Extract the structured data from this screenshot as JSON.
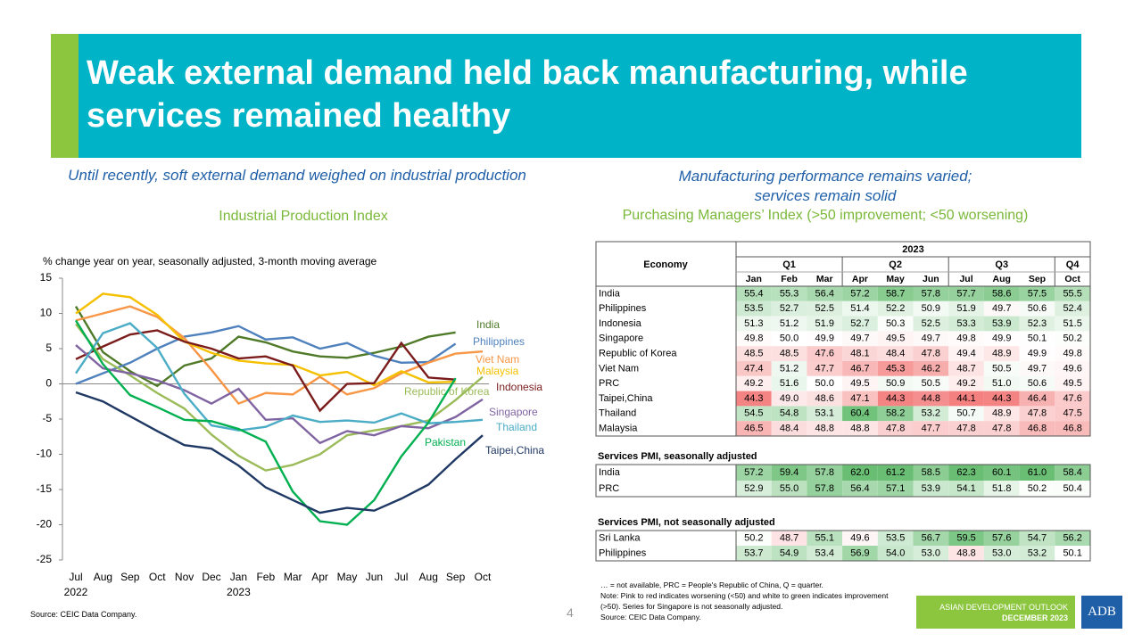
{
  "header": {
    "title": "Weak external demand held back manufacturing, while services remained healthy"
  },
  "left": {
    "heading": "Until recently, soft external demand weighed on industrial production",
    "source": "Source: CEIC Data Company."
  },
  "chart_data": {
    "type": "line",
    "title": "Industrial Production Index",
    "y_label": "% change year on year, seasonally adjusted, 3-month moving average",
    "categories": [
      "Jul",
      "Aug",
      "Sep",
      "Oct",
      "Nov",
      "Dec",
      "Jan",
      "Feb",
      "Mar",
      "Apr",
      "May",
      "Jun",
      "Jul",
      "Aug",
      "Sep",
      "Oct"
    ],
    "x_groups": [
      {
        "label": "2022",
        "index": 0
      },
      {
        "label": "2023",
        "index": 6
      }
    ],
    "ylim": [
      -25,
      15
    ],
    "yticks": [
      15,
      10,
      5,
      0,
      -5,
      -10,
      -15,
      -20,
      -25
    ],
    "grid": false,
    "series": [
      {
        "name": "India",
        "color": "#4f7a28",
        "values": [
          11,
          4.5,
          1.8,
          -0.3,
          2.6,
          3.6,
          6.7,
          5.9,
          4.6,
          3.9,
          3.7,
          4.4,
          5.3,
          6.7,
          7.3,
          null
        ]
      },
      {
        "name": "Philippines",
        "color": "#4f81bd",
        "values": [
          0,
          1.5,
          3,
          5,
          6.7,
          7.3,
          8.2,
          6.3,
          6.6,
          5,
          5.8,
          4,
          3,
          3.1,
          5.7,
          null
        ]
      },
      {
        "name": "Viet Nam",
        "color": "#f79646",
        "values": [
          9,
          10,
          11,
          9.5,
          6.5,
          2,
          -2.8,
          -1.3,
          -1.5,
          1,
          -1.5,
          -0.6,
          1.5,
          3,
          4.3,
          4.6
        ]
      },
      {
        "name": "Malaysia",
        "color": "#f5c000",
        "values": [
          10,
          12.8,
          12.3,
          9.8,
          6,
          4.4,
          3.3,
          2.9,
          2.7,
          1.2,
          1.7,
          -0.2,
          1.8,
          0.2,
          0.3,
          null
        ]
      },
      {
        "name": "Indonesia",
        "color": "#7b1c1c",
        "values": [
          3.5,
          5.3,
          7,
          7.6,
          6,
          5,
          3.6,
          3.9,
          2.6,
          -3.8,
          0,
          0.1,
          5.8,
          0.9,
          0.6,
          null
        ]
      },
      {
        "name": "Republic of Korea",
        "color": "#9bbb59",
        "values": [
          8.5,
          3.5,
          1.2,
          -1.3,
          -3.5,
          -7.2,
          -10.2,
          -12.3,
          -11.5,
          -10,
          -7.3,
          -6.6,
          -6,
          -5.2,
          -2.3,
          1
        ]
      },
      {
        "name": "Singapore",
        "color": "#8064a2",
        "values": [
          5.5,
          2.2,
          1.5,
          0.5,
          -0.9,
          -2.8,
          -0.7,
          -5.1,
          -4.9,
          -8.4,
          -6.7,
          -7.3,
          -6,
          -6.3,
          -4.7,
          -2.2
        ]
      },
      {
        "name": "Thailand",
        "color": "#4bacc6",
        "values": [
          1.5,
          7.2,
          8.6,
          5.1,
          -1.4,
          -5.9,
          -6.6,
          -6.1,
          -4.5,
          -5.4,
          -5.2,
          -5.5,
          -4.2,
          -5.6,
          -5.4,
          -5.1
        ]
      },
      {
        "name": "Pakistan",
        "color": "#00b050",
        "values": [
          9,
          2.8,
          -1.6,
          -3.3,
          -5.1,
          -5.3,
          -6.4,
          -8.2,
          -15.3,
          -19.5,
          -20,
          -16.5,
          -10.3,
          -5.5,
          0.8,
          null
        ]
      },
      {
        "name": "Taipei,China",
        "color": "#1f3864",
        "values": [
          -1.2,
          -2.5,
          -4.6,
          -6.7,
          -8.7,
          -9.2,
          -11.6,
          -14.7,
          -16.5,
          -18.3,
          -17.6,
          -18,
          -16.3,
          -14.3,
          -10.7,
          -7.3
        ]
      }
    ]
  },
  "right": {
    "heading": [
      "Manufacturing performance remains varied;",
      "services remain solid"
    ],
    "subtitle": "Purchasing Managers’ Index (>50 improvement; <50 worsening)"
  },
  "table": {
    "color_midpoint": 50,
    "header": {
      "economy": "Economy",
      "year": "2023",
      "quarters": [
        "Q1",
        "Q2",
        "Q3",
        "Q4"
      ],
      "months": [
        "Jan",
        "Feb",
        "Mar",
        "Apr",
        "May",
        "Jun",
        "Jul",
        "Aug",
        "Sep",
        "Oct"
      ]
    },
    "sections": [
      {
        "rows": [
          {
            "name": "India",
            "values": [
              "55.4",
              "55.3",
              "56.4",
              "57.2",
              "58.7",
              "57.8",
              "57.7",
              "58.6",
              "57.5",
              "55.5"
            ]
          },
          {
            "name": "Philippines",
            "values": [
              "53.5",
              "52.7",
              "52.5",
              "51.4",
              "52.2",
              "50.9",
              "51.9",
              "49.7",
              "50.6",
              "52.4"
            ]
          },
          {
            "name": "Indonesia",
            "values": [
              "51.3",
              "51.2",
              "51.9",
              "52.7",
              "50.3",
              "52.5",
              "53.3",
              "53.9",
              "52.3",
              "51.5"
            ]
          },
          {
            "name": "Singapore",
            "values": [
              "49.8",
              "50.0",
              "49.9",
              "49.7",
              "49.5",
              "49.7",
              "49.8",
              "49.9",
              "50.1",
              "50.2"
            ]
          },
          {
            "name": "Republic of Korea",
            "values": [
              "48.5",
              "48.5",
              "47.6",
              "48.1",
              "48.4",
              "47.8",
              "49.4",
              "48.9",
              "49.9",
              "49.8"
            ]
          },
          {
            "name": "Viet Nam",
            "values": [
              "47.4",
              "51.2",
              "47.7",
              "46.7",
              "45.3",
              "46.2",
              "48.7",
              "50.5",
              "49.7",
              "49.6"
            ]
          },
          {
            "name": "PRC",
            "values": [
              "49.2",
              "51.6",
              "50.0",
              "49.5",
              "50.9",
              "50.5",
              "49.2",
              "51.0",
              "50.6",
              "49.5"
            ]
          },
          {
            "name": "Taipei,China",
            "values": [
              "44.3",
              "49.0",
              "48.6",
              "47.1",
              "44.3",
              "44.8",
              "44.1",
              "44.3",
              "46.4",
              "47.6"
            ]
          },
          {
            "name": "Thailand",
            "values": [
              "54.5",
              "54.8",
              "53.1",
              "60.4",
              "58.2",
              "53.2",
              "50.7",
              "48.9",
              "47.8",
              "47.5"
            ]
          },
          {
            "name": "Malaysia",
            "values": [
              "46.5",
              "48.4",
              "48.8",
              "48.8",
              "47.8",
              "47.7",
              "47.8",
              "47.8",
              "46.8",
              "46.8"
            ]
          }
        ]
      },
      {
        "title": "Services PMI, seasonally adjusted",
        "rows": [
          {
            "name": "India",
            "values": [
              "57.2",
              "59.4",
              "57.8",
              "62.0",
              "61.2",
              "58.5",
              "62.3",
              "60.1",
              "61.0",
              "58.4"
            ]
          },
          {
            "name": "PRC",
            "values": [
              "52.9",
              "55.0",
              "57.8",
              "56.4",
              "57.1",
              "53.9",
              "54.1",
              "51.8",
              "50.2",
              "50.4"
            ]
          }
        ]
      },
      {
        "title": "Services PMI, not seasonally adjusted",
        "rows": [
          {
            "name": "Sri Lanka",
            "values": [
              "50.2",
              "48.7",
              "55.1",
              "49.6",
              "53.5",
              "56.7",
              "59.5",
              "57.6",
              "54.7",
              "56.2"
            ]
          },
          {
            "name": "Philippines",
            "values": [
              "53.7",
              "54.9",
              "53.4",
              "56.9",
              "54.0",
              "53.0",
              "48.8",
              "53.0",
              "53.2",
              "50.1"
            ]
          }
        ]
      }
    ],
    "notes": [
      "… = not available, PRC = People's Republic of China, Q = quarter.",
      "Note: Pink to red indicates worsening (<50) and white to green indicates improvement (>50). Series for Singapore is not seasonally adjusted.",
      "Source: CEIC Data Company."
    ]
  },
  "footer": {
    "page": "4",
    "badge": [
      "ASIAN DEVELOPMENT OUTLOOK",
      "DECEMBER 2023"
    ],
    "logo": "ADB"
  }
}
